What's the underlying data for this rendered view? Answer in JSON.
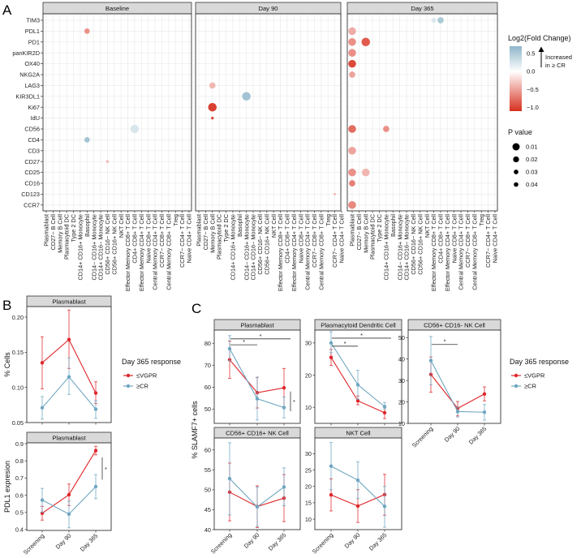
{
  "panel_labels": [
    "A",
    "B",
    "C"
  ],
  "chart_data": [
    {
      "type": "scatter",
      "id": "A",
      "facets": [
        "Baseline",
        "Day 90",
        "Day 365"
      ],
      "y_categories": [
        "TIM3",
        "PDL1",
        "PD1",
        "panKIR2D",
        "OX40",
        "NKG2A",
        "LAG3",
        "KIR3DL1",
        "Ki67",
        "IdU",
        "CD56",
        "CD4",
        "CD3",
        "CD27",
        "CD25",
        "CD16",
        "CD123",
        "CCR7"
      ],
      "x_categories": [
        "Plasmablast",
        "CD27− B Cell",
        "Memory B Cell",
        "Plasmacytoid DC",
        "Type 2 DC",
        "CD14+ CD16+ Monocyte",
        "Basophil",
        "CD14− CD16+ Monocyte",
        "CD14+ CD16− Monocyte",
        "CD56+ CD16− NK Cell",
        "CD56+ CD16+ NK Cell",
        "NKT Cell",
        "Effector Memory CD8+ T Cell",
        "CD4+ CD8+ T Cell",
        "Effector Memory CD4+ T Cell",
        "Naive CD8+ T Cell",
        "Central Memory CD4+ T Cell",
        "CCR7− CD8+ T Cell",
        "Central Memory CD8+ T Cell",
        "Treg",
        "CCR7− CD4+ T Cell",
        "Naive CD4+ T Cell"
      ],
      "points": [
        {
          "facet": "Baseline",
          "y": "PDL1",
          "x": "Basophil",
          "lfc": -0.6,
          "p": 0.03
        },
        {
          "facet": "Baseline",
          "y": "CD4",
          "x": "Basophil",
          "lfc": 0.5,
          "p": 0.03
        },
        {
          "facet": "Baseline",
          "y": "CD56",
          "x": "CD4+ CD8+ T Cell",
          "lfc": 0.2,
          "p": 0.01
        },
        {
          "facet": "Baseline",
          "y": "CD27",
          "x": "CD56+ CD16− NK Cell",
          "lfc": -0.4,
          "p": 0.048
        },
        {
          "facet": "Day 90",
          "y": "LAG3",
          "x": "Memory B Cell",
          "lfc": -0.4,
          "p": 0.025
        },
        {
          "facet": "Day 90",
          "y": "KIR3DL1",
          "x": "CD14− CD16+ Monocyte",
          "lfc": 0.5,
          "p": 0.01
        },
        {
          "facet": "Day 90",
          "y": "Ki67",
          "x": "Memory B Cell",
          "lfc": -1.1,
          "p": 0.01
        },
        {
          "facet": "Day 90",
          "y": "IdU",
          "x": "Memory B Cell",
          "lfc": -1.1,
          "p": 0.048
        },
        {
          "facet": "Day 90",
          "y": "CD123",
          "x": "CCR7− CD4+ T Cell",
          "lfc": -0.4,
          "p": 0.05
        },
        {
          "facet": "Day 365",
          "y": "TIM3",
          "x": "Effector Memory CD8+ T Cell",
          "lfc": 0.2,
          "p": 0.035
        },
        {
          "facet": "Day 365",
          "y": "TIM3",
          "x": "CD4+ CD8+ T Cell",
          "lfc": 0.45,
          "p": 0.025
        },
        {
          "facet": "Day 365",
          "y": "PDL1",
          "x": "Plasmablast",
          "lfc": -0.45,
          "p": 0.015
        },
        {
          "facet": "Day 365",
          "y": "PD1",
          "x": "Plasmablast",
          "lfc": -0.6,
          "p": 0.015
        },
        {
          "facet": "Day 365",
          "y": "PD1",
          "x": "Memory B Cell",
          "lfc": -0.9,
          "p": 0.01
        },
        {
          "facet": "Day 365",
          "y": "panKIR2D",
          "x": "Plasmablast",
          "lfc": -0.6,
          "p": 0.015
        },
        {
          "facet": "Day 365",
          "y": "OX40",
          "x": "Plasmablast",
          "lfc": -1.0,
          "p": 0.015
        },
        {
          "facet": "Day 365",
          "y": "NKG2A",
          "x": "Plasmablast",
          "lfc": -0.5,
          "p": 0.025
        },
        {
          "facet": "Day 365",
          "y": "CD56",
          "x": "Plasmablast",
          "lfc": -0.8,
          "p": 0.015
        },
        {
          "facet": "Day 365",
          "y": "CD56",
          "x": "CD14+ CD16+ Monocyte",
          "lfc": -0.6,
          "p": 0.025
        },
        {
          "facet": "Day 365",
          "y": "CD3",
          "x": "Plasmablast",
          "lfc": -0.5,
          "p": 0.015
        },
        {
          "facet": "Day 365",
          "y": "CD25",
          "x": "Plasmablast",
          "lfc": -0.6,
          "p": 0.015
        },
        {
          "facet": "Day 365",
          "y": "CD25",
          "x": "Memory B Cell",
          "lfc": -0.4,
          "p": 0.015
        },
        {
          "facet": "Day 365",
          "y": "CD16",
          "x": "Plasmablast",
          "lfc": -0.7,
          "p": 0.025
        },
        {
          "facet": "Day 365",
          "y": "CCR7",
          "x": "Plasmablast",
          "lfc": -0.65,
          "p": 0.015
        }
      ],
      "color_legend": {
        "title": "Log2(Fold Change)",
        "ticks": [
          "0.5",
          "0.0",
          "−0.5",
          "−1.0"
        ],
        "tick_values": [
          0.5,
          0,
          -0.5,
          -1.0
        ],
        "range": [
          -1.1,
          0.7
        ],
        "annotation_line1": "Increased",
        "annotation_line2": "in ≥ CR",
        "low_color": "#d7301f",
        "high_color": "#7fadc2"
      },
      "size_legend": {
        "title": "P value",
        "labels": [
          "0.01",
          "0.02",
          "0.03",
          "0.04"
        ],
        "values": [
          0.01,
          0.02,
          0.03,
          0.04
        ]
      }
    },
    {
      "type": "line",
      "id": "B",
      "x": [
        "Screening",
        "Day 90",
        "Day 365"
      ],
      "legend": {
        "title": "Day 365 response",
        "entries": [
          "≤VGPR",
          "≥CR"
        ],
        "colors": [
          "#e0262b",
          "#6ea6c1"
        ]
      },
      "panels": [
        {
          "title": "Plasmablast",
          "ylabel": "% Cells",
          "ylim": [
            0.05,
            0.215
          ],
          "yticks": [
            0.05,
            0.1,
            0.15,
            0.2
          ],
          "ytick_labels": [
            "0.05",
            "0.10",
            "0.15",
            "0.20"
          ],
          "series": [
            {
              "name": "≤VGPR",
              "y": [
                0.135,
                0.168,
                0.092
              ],
              "lo": [
                0.098,
                0.127,
                0.077
              ],
              "hi": [
                0.172,
                0.21,
                0.108
              ]
            },
            {
              "name": "≥CR",
              "y": [
                0.071,
                0.115,
                0.069
              ],
              "lo": [
                0.055,
                0.09,
                0.056
              ],
              "hi": [
                0.087,
                0.142,
                0.081
              ]
            }
          ],
          "sig": [],
          "show_x": false
        },
        {
          "title": "Plasmablast",
          "ylabel": "PDL1 expresion",
          "ylim": [
            0.395,
            0.905
          ],
          "yticks": [
            0.4,
            0.5,
            0.6,
            0.7,
            0.8,
            0.9
          ],
          "ytick_labels": [
            "0.4",
            "0.5",
            "0.6",
            "0.7",
            "0.8",
            "0.9"
          ],
          "series": [
            {
              "name": "≤VGPR",
              "y": [
                0.495,
                0.603,
                0.86
              ],
              "lo": [
                0.455,
                0.54,
                0.835
              ],
              "hi": [
                0.535,
                0.665,
                0.885
              ]
            },
            {
              "name": "≥CR",
              "y": [
                0.572,
                0.49,
                0.65
              ],
              "lo": [
                0.5,
                0.41,
                0.58
              ],
              "hi": [
                0.64,
                0.565,
                0.72
              ]
            }
          ],
          "sig": [
            {
              "kind": "vertical",
              "at": "Day 365",
              "from": 0.69,
              "to": 0.82,
              "label": "*"
            }
          ],
          "show_x": true
        }
      ]
    },
    {
      "type": "line",
      "id": "C",
      "x": [
        "Screening",
        "Day 90",
        "Day 365"
      ],
      "ylabel": "% SLAMF7+ cells",
      "legend": {
        "title": "Day 365 response",
        "entries": [
          "≤VGPR",
          "≥CR"
        ],
        "colors": [
          "#e0262b",
          "#6ea6c1"
        ]
      },
      "panels": [
        {
          "title": "Plasmablast",
          "ylim": [
            43.5,
            86
          ],
          "yticks": [
            50,
            60,
            70,
            80
          ],
          "ytick_labels": [
            "50",
            "60",
            "70",
            "80"
          ],
          "series": [
            {
              "name": "≤VGPR",
              "y": [
                72.5,
                57.5,
                59.7
              ],
              "lo": [
                64,
                50.5,
                51
              ],
              "hi": [
                81,
                64.5,
                68.5
              ]
            },
            {
              "name": "≥CR",
              "y": [
                77.5,
                54.7,
                50.7
              ],
              "lo": [
                72,
                45,
                46
              ],
              "hi": [
                83.5,
                64.5,
                55.5
              ]
            }
          ],
          "sig": [
            {
              "kind": "h",
              "from": "Screening",
              "to": "Day 90",
              "at": 79.3,
              "label": "*"
            },
            {
              "kind": "h",
              "from": "Screening",
              "to": "Day 365",
              "at": 82,
              "label": "*"
            },
            {
              "kind": "vertical",
              "at": "Day 365",
              "from": 49,
              "to": 58,
              "label": "*"
            }
          ],
          "show_x": false
        },
        {
          "title": "Plasmacytoid Dendritic Cell",
          "ylim": [
            5,
            34
          ],
          "yticks": [
            10,
            20,
            30
          ],
          "ytick_labels": [
            "10",
            "20",
            "30"
          ],
          "series": [
            {
              "name": "≤VGPR",
              "y": [
                25.5,
                12,
                8.3
              ],
              "lo": [
                23,
                10.8,
                6.5
              ],
              "hi": [
                28,
                13.5,
                10
              ]
            },
            {
              "name": "≥CR",
              "y": [
                30,
                17,
                10.2
              ],
              "lo": [
                27,
                12.5,
                9.5
              ],
              "hi": [
                33.5,
                21.5,
                11.5
              ]
            }
          ],
          "sig": [
            {
              "kind": "h",
              "from": "Screening",
              "to": "Day 90",
              "at": 29,
              "label": "*"
            },
            {
              "kind": "h",
              "from": "Screening",
              "to": "Day 365",
              "at": 31.5,
              "label": "*"
            }
          ],
          "show_x": false
        },
        {
          "title": "CD56+ CD16- NK Cell",
          "ylim": [
            10,
            53.5
          ],
          "yticks": [
            10,
            20,
            30,
            40,
            50
          ],
          "ytick_labels": [
            "10",
            "20",
            "30",
            "40",
            "50"
          ],
          "series": [
            {
              "name": "≤VGPR",
              "y": [
                32.8,
                17,
                23.7
              ],
              "lo": [
                24.5,
                13.5,
                20.5
              ],
              "hi": [
                41,
                20.2,
                27
              ]
            },
            {
              "name": "≥CR",
              "y": [
                39.3,
                15.5,
                15.2
              ],
              "lo": [
                28,
                13,
                11.5
              ],
              "hi": [
                50.5,
                17.5,
                18.8
              ]
            }
          ],
          "sig": [
            {
              "kind": "h",
              "from": "Screening",
              "to": "Day 90",
              "at": 46.8,
              "label": "*"
            }
          ],
          "show_x": true
        },
        {
          "title": "CD56+ CD16+ NK Cell",
          "ylim": [
            40,
            63
          ],
          "yticks": [
            40,
            45,
            50,
            55,
            60
          ],
          "ytick_labels": [
            "40",
            "45",
            "50",
            "55",
            "60"
          ],
          "series": [
            {
              "name": "≤VGPR",
              "y": [
                49.4,
                45.8,
                47.9
              ],
              "lo": [
                42.2,
                40.5,
                42
              ],
              "hi": [
                56.7,
                51,
                53.8
              ]
            },
            {
              "name": "≥CR",
              "y": [
                52.8,
                45.7,
                50.7
              ],
              "lo": [
                43.7,
                40.8,
                46
              ],
              "hi": [
                61.8,
                50.7,
                55.5
              ]
            }
          ],
          "sig": [],
          "show_x": true
        },
        {
          "title": "NKT Cell",
          "ylim": [
            6.8,
            34.8
          ],
          "yticks": [
            10,
            15,
            20,
            25,
            30
          ],
          "ytick_labels": [
            "10",
            "15",
            "20",
            "25",
            "30"
          ],
          "series": [
            {
              "name": "≤VGPR",
              "y": [
                17.4,
                14,
                17.5
              ],
              "lo": [
                12.5,
                9,
                11.2
              ],
              "hi": [
                22.3,
                19,
                23.7
              ]
            },
            {
              "name": "≥CR",
              "y": [
                26.2,
                21.9,
                13.9
              ],
              "lo": [
                19,
                16.3,
                7.5
              ],
              "hi": [
                33.4,
                27.5,
                20
              ]
            }
          ],
          "sig": [],
          "show_x": true
        }
      ]
    }
  ]
}
